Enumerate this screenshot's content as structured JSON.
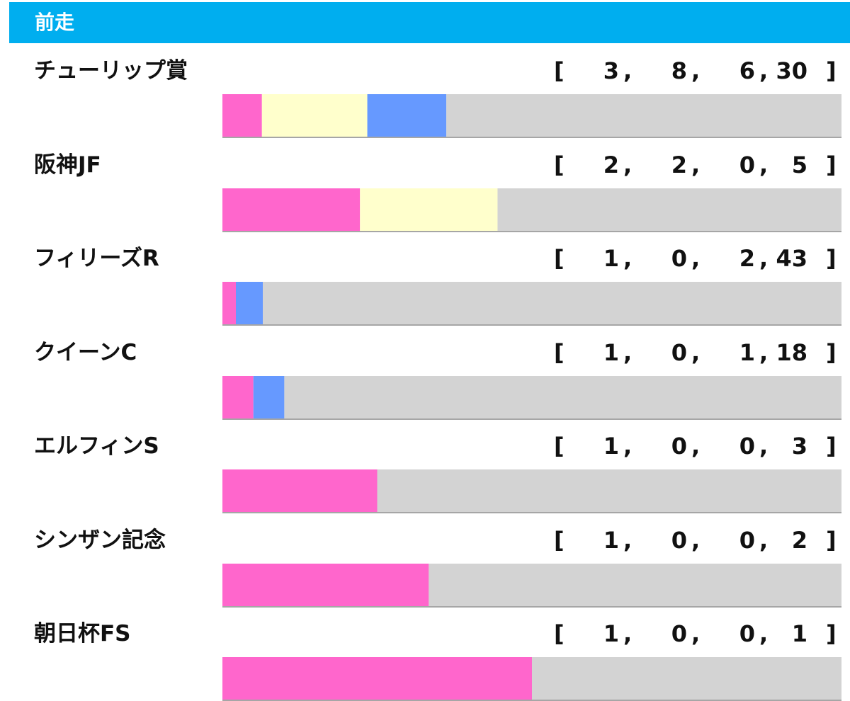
{
  "header": {
    "title": "前走"
  },
  "colors": {
    "first": "#ff66cc",
    "second": "#ffffcc",
    "third": "#6699ff",
    "other": "#d3d3d3",
    "header_bg": "#00aeef"
  },
  "chart_data": {
    "type": "bar",
    "title": "前走",
    "orientation": "horizontal-stacked-100",
    "legend": "none",
    "grid": false,
    "categories": [
      "チューリップ賞",
      "阪神JF",
      "フィリーズR",
      "クイーンC",
      "エルフィンS",
      "シンザン記念",
      "朝日杯FS"
    ],
    "series": [
      {
        "values": [
          3,
          2,
          1,
          1,
          1,
          1,
          1
        ]
      },
      {
        "values": [
          8,
          2,
          0,
          0,
          0,
          0,
          0
        ]
      },
      {
        "values": [
          6,
          0,
          2,
          1,
          0,
          0,
          0
        ]
      },
      {
        "values": [
          30,
          5,
          43,
          18,
          3,
          2,
          1
        ]
      }
    ],
    "record_text": [
      [
        "3",
        "8",
        "6",
        "30"
      ],
      [
        "2",
        "2",
        "0",
        "5"
      ],
      [
        "1",
        "0",
        "2",
        "43"
      ],
      [
        "1",
        "0",
        "1",
        "18"
      ],
      [
        "1",
        "0",
        "0",
        "3"
      ],
      [
        "1",
        "0",
        "0",
        "2"
      ],
      [
        "1",
        "0",
        "0",
        "1"
      ]
    ],
    "punctuation": {
      "open": "[",
      "close": "]",
      "sep": ","
    }
  }
}
